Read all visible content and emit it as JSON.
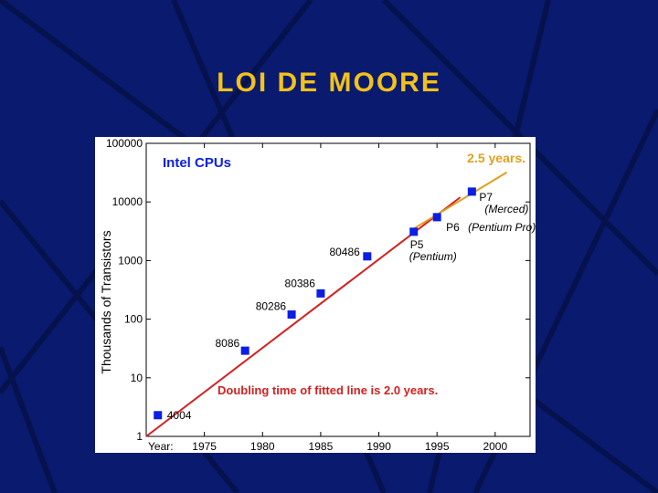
{
  "slide": {
    "title": "LOI DE MOORE"
  },
  "colors": {
    "background": "#0a1a6e",
    "title": "#f2c21a",
    "fit_line": "#d42020",
    "trend_line": "#e0a020",
    "marker": "#0a1ee6",
    "accent_text": "#d42020",
    "orange_text": "#e0a020",
    "heading_text": "#0a1ee6"
  },
  "chart_data": {
    "type": "scatter",
    "title": "Intel CPUs",
    "ylabel": "Thousands of Transistors",
    "xlabel": "Year:",
    "y_scale": "log",
    "xlim": [
      1970,
      2003
    ],
    "ylim": [
      1,
      100000
    ],
    "x_ticks": [
      1975,
      1980,
      1985,
      1990,
      1995,
      2000
    ],
    "y_ticks": [
      {
        "value": 1,
        "label": "1"
      },
      {
        "value": 10,
        "label": "10"
      },
      {
        "value": 100,
        "label": "100"
      },
      {
        "value": 1000,
        "label": "1000"
      },
      {
        "value": 10000,
        "label": "10000"
      },
      {
        "value": 100000,
        "label": "100000"
      }
    ],
    "series": [
      {
        "points": [
          {
            "x": 1971,
            "y": 2.3,
            "label": "4004"
          },
          {
            "x": 1978.5,
            "y": 29,
            "label": "8086"
          },
          {
            "x": 1982.5,
            "y": 120,
            "label": "80286"
          },
          {
            "x": 1985,
            "y": 275,
            "label": "80386"
          },
          {
            "x": 1989,
            "y": 1180,
            "label": "80486"
          },
          {
            "x": 1993,
            "y": 3100,
            "label": "P5",
            "sublabel": "(Pentium)"
          },
          {
            "x": 1995,
            "y": 5500,
            "label": "P6",
            "sublabel": "(Pentium Pro)"
          },
          {
            "x": 1998,
            "y": 15000,
            "label": "P7",
            "sublabel": "(Merced)"
          }
        ]
      }
    ],
    "fit_line": {
      "points": [
        [
          1970,
          1
        ],
        [
          1997,
          12000
        ]
      ]
    },
    "trend_line": {
      "points": [
        [
          1993,
          3500
        ],
        [
          2001,
          32000
        ]
      ]
    },
    "annotations": {
      "trend": "2.5 years.",
      "fit": "Doubling time of fitted line is 2.0 years."
    }
  }
}
